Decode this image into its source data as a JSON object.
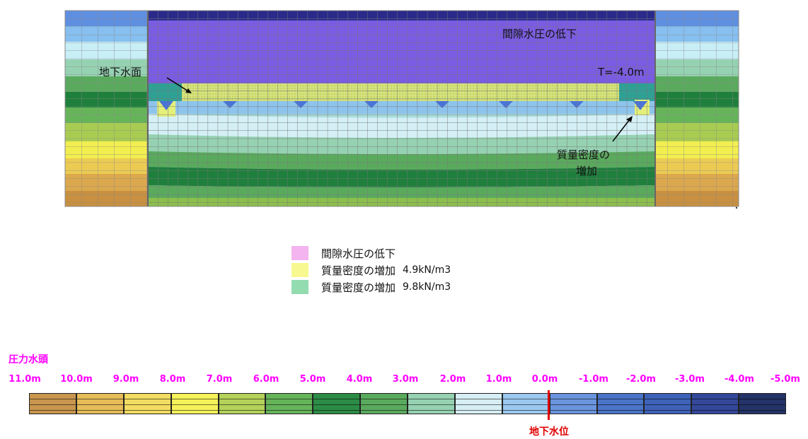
{
  "model": {
    "label_pressure_drop": "間隙水圧の低下",
    "label_water_surface": "地下水面",
    "label_time": "T=-4.0m",
    "label_mass_line1": "質量密度の",
    "label_mass_line2": "増加"
  },
  "legend": [
    {
      "label": "間隙水圧の低下",
      "value": "",
      "color": "#f4b4f0"
    },
    {
      "label": "質量密度の増加",
      "value": "4.9kN/m3",
      "color": "#f8f890"
    },
    {
      "label": "質量密度の増加",
      "value": "9.8kN/m3",
      "color": "#92dcb0"
    }
  ],
  "scale": {
    "title": "圧力水頭",
    "ticks": [
      "11.0m",
      "10.0m",
      "9.0m",
      "8.0m",
      "7.0m",
      "6.0m",
      "5.0m",
      "4.0m",
      "3.0m",
      "2.0m",
      "1.0m",
      "0.0m",
      "-1.0m",
      "-2.0m",
      "-3.0m",
      "-4.0m",
      "-5.0m"
    ],
    "colors": [
      "#c8964e",
      "#e6bc58",
      "#f2dc62",
      "#f6f25a",
      "#b4d25a",
      "#66b45a",
      "#2c8c46",
      "#5aaa5e",
      "#96d2b2",
      "#d6eef4",
      "#9cc8f0",
      "#6a94dc",
      "#4a74c8",
      "#3e62b8",
      "#34489a",
      "#243468"
    ],
    "water_level_label": "地下水位"
  }
}
